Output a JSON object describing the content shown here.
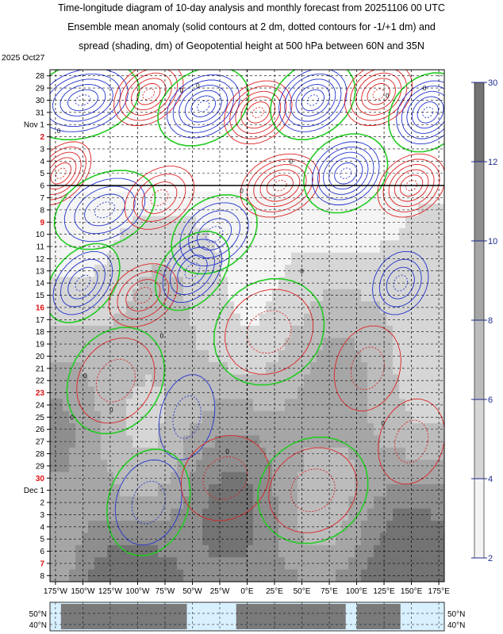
{
  "title_lines": [
    "Time-longitude diagram of 10-day analysis and monthly forecast from 20251106 00 UTC",
    "Ensemble mean anomaly (solid contours at 2 dm, dotted contours for -1/+1 dm) and",
    "spread (shading, dm) of Geopotential height at 500 hPa between 60N and 35N"
  ],
  "chart_data": {
    "type": "heatmap",
    "start_label": "2025 Oct27",
    "y_ticks": [
      {
        "label": "28",
        "red": false
      },
      {
        "label": "29",
        "red": false
      },
      {
        "label": "30",
        "red": false
      },
      {
        "label": "31",
        "red": false
      },
      {
        "label": "Nov 1",
        "red": false
      },
      {
        "label": "2",
        "red": true
      },
      {
        "label": "3",
        "red": false
      },
      {
        "label": "4",
        "red": false
      },
      {
        "label": "5",
        "red": false
      },
      {
        "label": "6",
        "red": false
      },
      {
        "label": "7",
        "red": false
      },
      {
        "label": "8",
        "red": false
      },
      {
        "label": "9",
        "red": true
      },
      {
        "label": "10",
        "red": false
      },
      {
        "label": "11",
        "red": false
      },
      {
        "label": "12",
        "red": false
      },
      {
        "label": "13",
        "red": false
      },
      {
        "label": "14",
        "red": false
      },
      {
        "label": "15",
        "red": false
      },
      {
        "label": "16",
        "red": true
      },
      {
        "label": "17",
        "red": false
      },
      {
        "label": "18",
        "red": false
      },
      {
        "label": "19",
        "red": false
      },
      {
        "label": "20",
        "red": false
      },
      {
        "label": "21",
        "red": false
      },
      {
        "label": "22",
        "red": false
      },
      {
        "label": "23",
        "red": true
      },
      {
        "label": "24",
        "red": false
      },
      {
        "label": "25",
        "red": false
      },
      {
        "label": "26",
        "red": false
      },
      {
        "label": "27",
        "red": false
      },
      {
        "label": "28",
        "red": false
      },
      {
        "label": "29",
        "red": false
      },
      {
        "label": "30",
        "red": true
      },
      {
        "label": "Dec 1",
        "red": false
      },
      {
        "label": "2",
        "red": false
      },
      {
        "label": "3",
        "red": false
      },
      {
        "label": "4",
        "red": false
      },
      {
        "label": "5",
        "red": false
      },
      {
        "label": "6",
        "red": false
      },
      {
        "label": "7",
        "red": true
      },
      {
        "label": "8",
        "red": false
      }
    ],
    "x_ticks": [
      "175°W",
      "150°W",
      "125°W",
      "100°W",
      "75°W",
      "50°W",
      "25°W",
      "0°E",
      "25°E",
      "50°E",
      "75°E",
      "100°E",
      "125°E",
      "150°E",
      "175°E"
    ],
    "x_values": [
      -175,
      -150,
      -125,
      -100,
      -75,
      -50,
      -25,
      0,
      25,
      50,
      75,
      100,
      125,
      150,
      175
    ],
    "xlim": [
      -180,
      180
    ],
    "analysis_end": "6",
    "colorbar": {
      "ticks": [
        "2",
        "4",
        "6",
        "8",
        "10",
        "12",
        "30"
      ],
      "levels": [
        2,
        4,
        6,
        8,
        10,
        12,
        30
      ],
      "colors": [
        "#f4f4f4",
        "#d6d6d6",
        "#bcbcbc",
        "#a6a6a6",
        "#8e8e8e",
        "#737373"
      ]
    },
    "contour_colors": {
      "negative": "#2233cc",
      "positive": "#dd2222",
      "zero": "#22cc22"
    },
    "map_lat_labels": [
      "50°N",
      "40°N"
    ],
    "contour_labels": [
      {
        "text": "0",
        "x": -60,
        "day": 1.2
      },
      {
        "text": "0",
        "x": -45,
        "day": 0.8
      },
      {
        "text": "0",
        "x": 128,
        "day": 1.6
      },
      {
        "text": "0",
        "x": 162,
        "day": 1.0
      },
      {
        "text": "0",
        "x": -172,
        "day": 4.5
      },
      {
        "text": "0",
        "x": 40,
        "day": 7.0
      },
      {
        "text": "0",
        "x": -5,
        "day": 9.4
      },
      {
        "text": "0",
        "x": 50,
        "day": 16.0
      },
      {
        "text": "0",
        "x": -78,
        "day": 21.3
      },
      {
        "text": "0",
        "x": -148,
        "day": 24.6
      },
      {
        "text": "0",
        "x": -124,
        "day": 27.4
      },
      {
        "text": "0",
        "x": -18,
        "day": 30.8
      },
      {
        "text": "0",
        "x": 124,
        "day": 28.5
      },
      {
        "text": "0",
        "x": -160,
        "day": 28.0
      }
    ]
  }
}
